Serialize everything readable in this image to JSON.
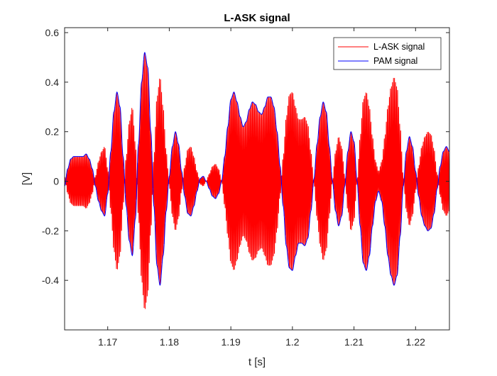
{
  "chart_data": {
    "type": "line",
    "title": "L-ASK signal",
    "xlabel": "t [s]",
    "ylabel": "[V]",
    "xlim": [
      1.163,
      1.2255
    ],
    "ylim": [
      -0.6,
      0.62
    ],
    "xticks": [
      1.17,
      1.18,
      1.19,
      1.2,
      1.21,
      1.22
    ],
    "xtick_labels": [
      "1.17",
      "1.18",
      "1.19",
      "1.2",
      "1.21",
      "1.22"
    ],
    "yticks": [
      -0.4,
      -0.2,
      0,
      0.2,
      0.4,
      0.6
    ],
    "ytick_labels": [
      "-0.4",
      "-0.2",
      "0",
      "0.2",
      "0.4",
      "0.6"
    ],
    "grid": false,
    "legend_position": "top-right",
    "carrier_cycles_per_second": 6000,
    "series": [
      {
        "name": "L-ASK signal",
        "color": "#ff0000",
        "role": "modulated carrier following the PAM envelope"
      },
      {
        "name": "PAM signal",
        "color": "#0000ff",
        "envelope": {
          "x": [
            1.163,
            1.1635,
            1.164,
            1.1645,
            1.165,
            1.1655,
            1.166,
            1.1665,
            1.167,
            1.1675,
            1.168,
            1.1685,
            1.169,
            1.1695,
            1.17,
            1.1705,
            1.171,
            1.1715,
            1.172,
            1.1725,
            1.173,
            1.1735,
            1.174,
            1.1745,
            1.175,
            1.1755,
            1.176,
            1.1765,
            1.177,
            1.1775,
            1.178,
            1.1785,
            1.179,
            1.1795,
            1.18,
            1.1805,
            1.181,
            1.1815,
            1.182,
            1.1825,
            1.183,
            1.1835,
            1.184,
            1.1845,
            1.185,
            1.1855,
            1.186,
            1.1865,
            1.187,
            1.1875,
            1.188,
            1.1885,
            1.189,
            1.1895,
            1.19,
            1.1905,
            1.191,
            1.1915,
            1.192,
            1.1925,
            1.193,
            1.1935,
            1.194,
            1.1945,
            1.195,
            1.1955,
            1.196,
            1.1965,
            1.197,
            1.1975,
            1.198,
            1.1985,
            1.199,
            1.1995,
            1.2,
            1.2005,
            1.201,
            1.2015,
            1.202,
            1.2025,
            1.203,
            1.2035,
            1.204,
            1.2045,
            1.205,
            1.2055,
            1.206,
            1.2065,
            1.207,
            1.2075,
            1.208,
            1.2085,
            1.209,
            1.2095,
            1.21,
            1.2105,
            1.211,
            1.2115,
            1.212,
            1.2125,
            1.213,
            1.2135,
            1.214,
            1.2145,
            1.215,
            1.2155,
            1.216,
            1.2165,
            1.217,
            1.2175,
            1.218,
            1.2185,
            1.219,
            1.2195,
            1.22,
            1.2205,
            1.221,
            1.2215,
            1.222,
            1.2225,
            1.223,
            1.2235,
            1.224,
            1.2245,
            1.225,
            1.2255
          ],
          "y": [
            -0.02,
            0.05,
            0.09,
            0.1,
            0.1,
            0.1,
            0.1,
            0.11,
            0.09,
            0.05,
            -0.02,
            -0.08,
            -0.12,
            -0.14,
            -0.05,
            0.12,
            0.28,
            0.36,
            0.3,
            0.1,
            -0.1,
            -0.24,
            -0.3,
            -0.15,
            0.15,
            0.4,
            0.52,
            0.46,
            0.2,
            -0.1,
            -0.34,
            -0.42,
            -0.3,
            -0.12,
            0.02,
            0.14,
            0.2,
            0.15,
            0.04,
            -0.06,
            -0.13,
            -0.14,
            -0.1,
            -0.04,
            0.01,
            0.02,
            0.0,
            -0.03,
            -0.06,
            -0.07,
            -0.05,
            0.0,
            0.1,
            0.22,
            0.33,
            0.36,
            0.32,
            0.26,
            0.22,
            0.24,
            0.29,
            0.32,
            0.31,
            0.28,
            0.27,
            0.3,
            0.34,
            0.34,
            0.3,
            0.2,
            0.06,
            -0.1,
            -0.26,
            -0.35,
            -0.36,
            -0.3,
            -0.25,
            -0.25,
            -0.26,
            -0.23,
            -0.12,
            0.01,
            0.15,
            0.26,
            0.32,
            0.28,
            0.14,
            0.0,
            -0.12,
            -0.18,
            -0.14,
            -0.02,
            0.12,
            0.2,
            0.16,
            0.0,
            -0.18,
            -0.33,
            -0.36,
            -0.3,
            -0.18,
            -0.08,
            -0.04,
            -0.08,
            -0.18,
            -0.3,
            -0.38,
            -0.42,
            -0.38,
            -0.22,
            -0.02,
            0.12,
            0.18,
            0.14,
            0.04,
            -0.06,
            -0.14,
            -0.18,
            -0.2,
            -0.19,
            -0.13,
            -0.03,
            0.06,
            0.12,
            0.14,
            0.12
          ]
        }
      }
    ]
  }
}
